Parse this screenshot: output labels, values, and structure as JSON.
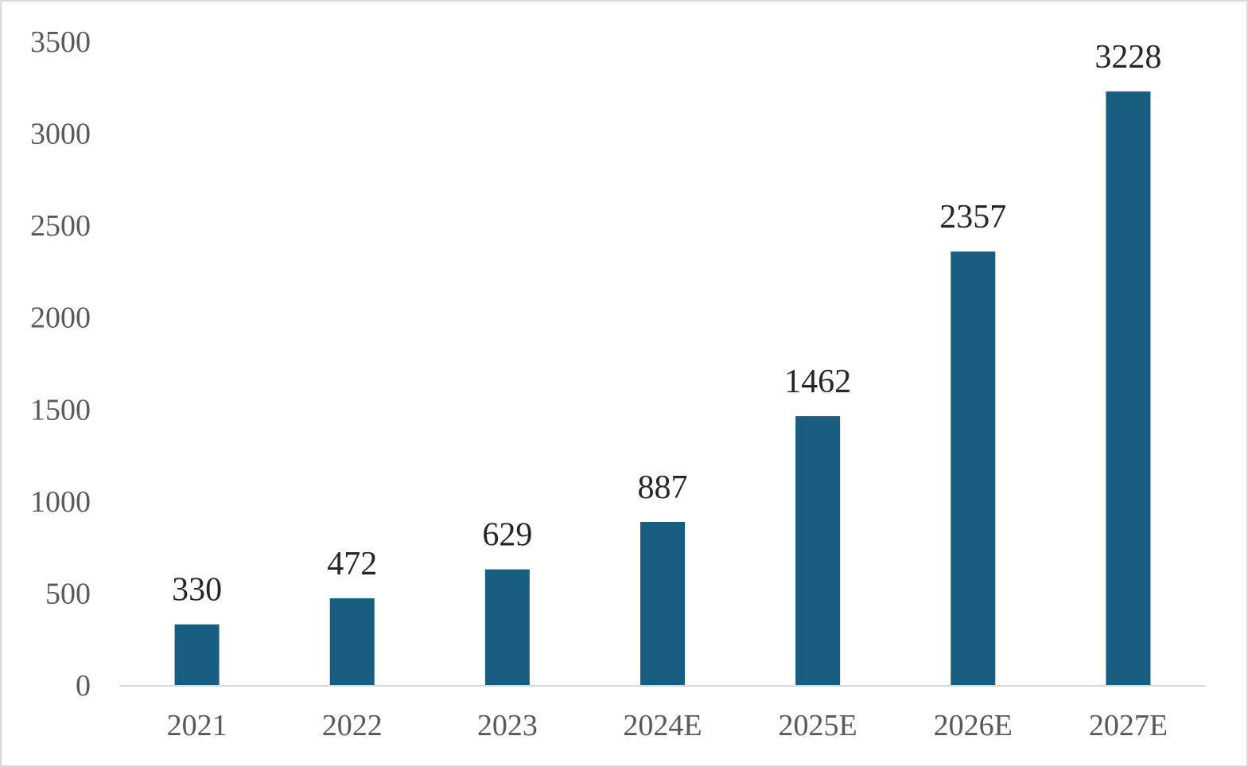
{
  "chart_data": {
    "type": "bar",
    "title": "",
    "xlabel": "",
    "ylabel": "",
    "categories": [
      "2021",
      "2022",
      "2023",
      "2024E",
      "2025E",
      "2026E",
      "2027E"
    ],
    "values": [
      330,
      472,
      629,
      887,
      1462,
      2357,
      3228
    ],
    "data_labels": [
      "330",
      "472",
      "629",
      "887",
      "1462",
      "2357",
      "3228"
    ],
    "ylim": [
      0,
      3500
    ],
    "yticks": [
      0,
      500,
      1000,
      1500,
      2000,
      2500,
      3000,
      3500
    ],
    "ytick_labels": [
      "0",
      "500",
      "1000",
      "1500",
      "2000",
      "2500",
      "3000",
      "3500"
    ],
    "grid": false,
    "legend": "none",
    "colors": {
      "bar": "#175e80",
      "axis": "#d9d9d9",
      "tick_text": "#595959",
      "label_text": "#262626"
    }
  }
}
